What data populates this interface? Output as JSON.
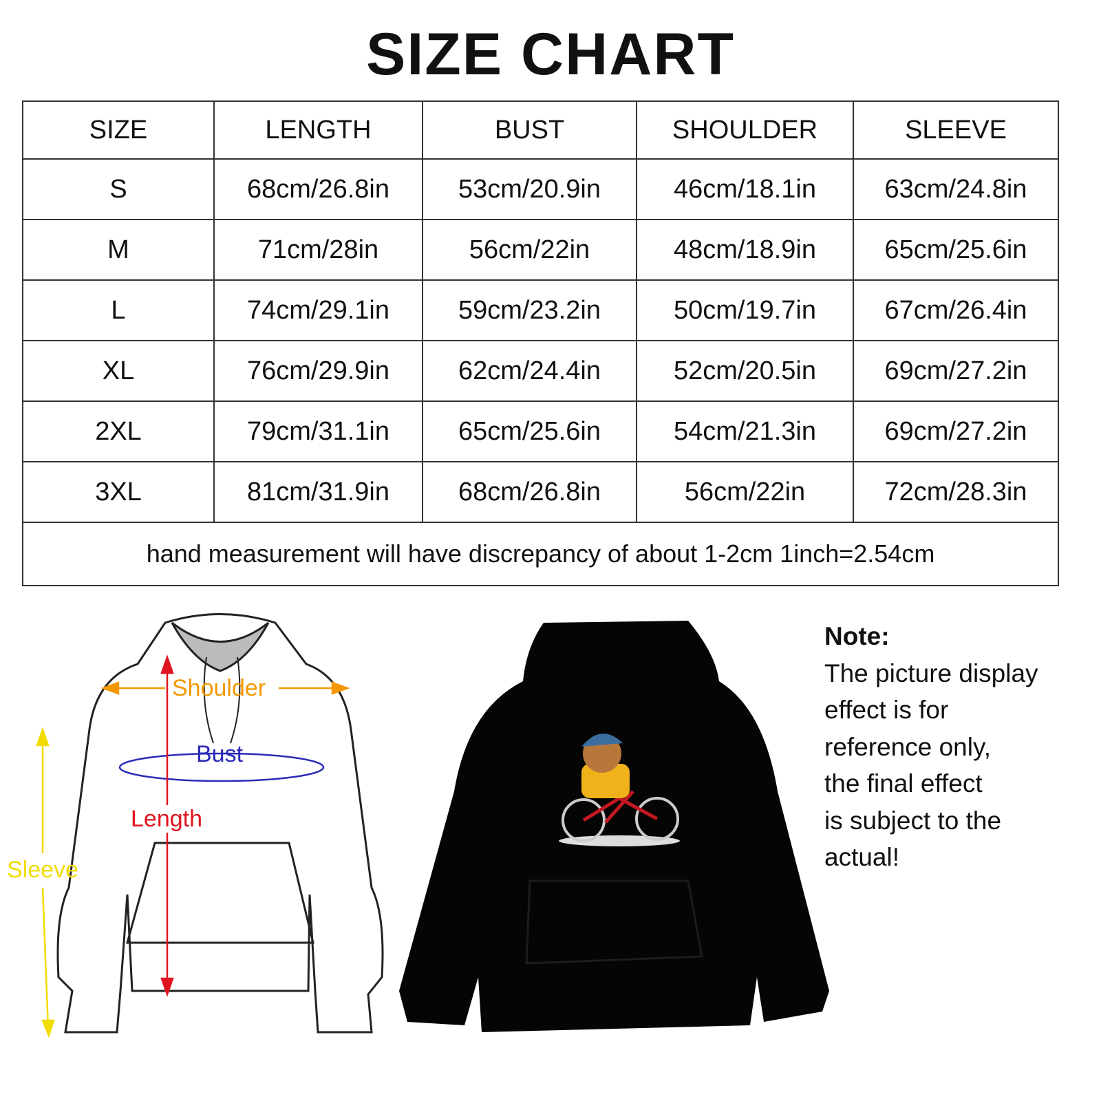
{
  "title": "SIZE CHART",
  "table": {
    "headers": [
      "SIZE",
      "LENGTH",
      "BUST",
      "SHOULDER",
      "SLEEVE"
    ],
    "rows": [
      [
        "S",
        "68cm/26.8in",
        "53cm/20.9in",
        "46cm/18.1in",
        "63cm/24.8in"
      ],
      [
        "M",
        "71cm/28in",
        "56cm/22in",
        "48cm/18.9in",
        "65cm/25.6in"
      ],
      [
        "L",
        "74cm/29.1in",
        "59cm/23.2in",
        "50cm/19.7in",
        "67cm/26.4in"
      ],
      [
        "XL",
        "76cm/29.9in",
        "62cm/24.4in",
        "52cm/20.5in",
        "69cm/27.2in"
      ],
      [
        "2XL",
        "79cm/31.1in",
        "65cm/25.6in",
        "54cm/21.3in",
        "69cm/27.2in"
      ],
      [
        "3XL",
        "81cm/31.9in",
        "68cm/26.8in",
        "56cm/22in",
        "72cm/28.3in"
      ]
    ],
    "footnote": "hand measurement will have discrepancy of about 1-2cm 1inch=2.54cm"
  },
  "diagram": {
    "shoulder_label": "Shoulder",
    "bust_label": "Bust",
    "length_label": "Length",
    "sleeve_label": "Sleeve",
    "colors": {
      "shoulder": "#f39800",
      "bust": "#2b2bb8",
      "length": "#e0141e",
      "sleeve": "#f2dc00"
    }
  },
  "note": {
    "heading": "Note:",
    "lines": [
      "The picture display",
      "effect is for",
      "reference only,",
      "the final effect",
      "is subject to the",
      "actual!"
    ]
  }
}
